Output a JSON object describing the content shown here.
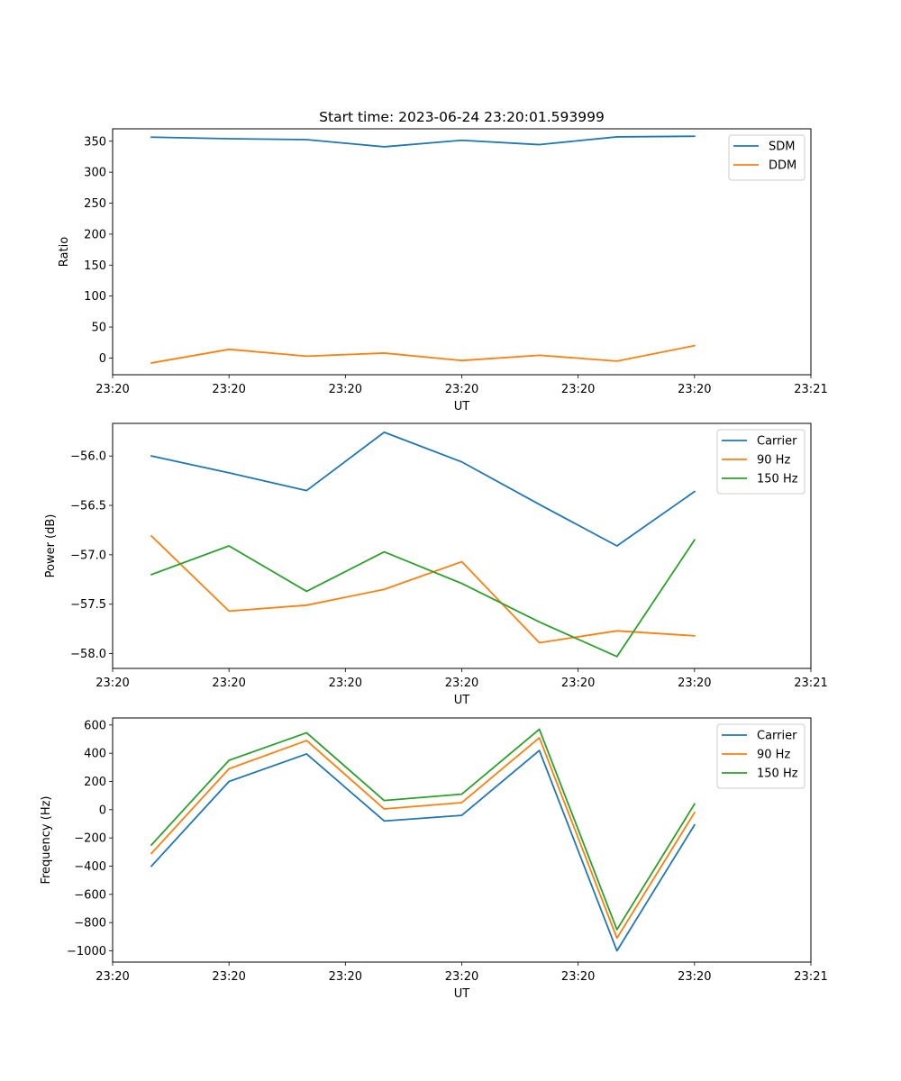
{
  "chart_data": [
    {
      "type": "line",
      "title": "Start time: 2023-06-24 23:20:01.593999",
      "xlabel": "UT",
      "ylabel": "Ratio",
      "x": [
        1,
        2,
        3,
        4,
        5,
        6,
        7,
        8
      ],
      "xlim": [
        0.5,
        9.5
      ],
      "x_ticks": [
        0.5,
        2,
        3.5,
        5,
        6.5,
        8,
        9.5
      ],
      "x_tick_labels": [
        "23:20",
        "23:20",
        "23:20",
        "23:20",
        "23:20",
        "23:20",
        "23:21"
      ],
      "ylim": [
        -27,
        370
      ],
      "y_ticks": [
        0,
        50,
        100,
        150,
        200,
        250,
        300,
        350
      ],
      "y_tick_labels": [
        "0",
        "50",
        "100",
        "150",
        "200",
        "250",
        "300",
        "350"
      ],
      "legend": "top-right",
      "grid": false,
      "series": [
        {
          "name": "SDM",
          "color": "#1f77b4",
          "values": [
            356.5,
            354,
            352.5,
            341,
            351.5,
            344.5,
            357,
            358
          ]
        },
        {
          "name": "DDM",
          "color": "#ff7f0e",
          "values": [
            -8,
            14,
            3,
            8,
            -4,
            4.5,
            -5,
            20
          ]
        }
      ]
    },
    {
      "type": "line",
      "title": "",
      "xlabel": "UT",
      "ylabel": "Power (dB)",
      "x": [
        1,
        2,
        3,
        4,
        5,
        6,
        7,
        8
      ],
      "xlim": [
        0.5,
        9.5
      ],
      "x_ticks": [
        0.5,
        2,
        3.5,
        5,
        6.5,
        8,
        9.5
      ],
      "x_tick_labels": [
        "23:20",
        "23:20",
        "23:20",
        "23:20",
        "23:20",
        "23:20",
        "23:21"
      ],
      "ylim": [
        -58.15,
        -55.67
      ],
      "y_ticks": [
        -58.0,
        -57.5,
        -57.0,
        -56.5,
        -56.0
      ],
      "y_tick_labels": [
        "−58.0",
        "−57.5",
        "−57.0",
        "−56.5",
        "−56.0"
      ],
      "legend": "top-right",
      "grid": false,
      "series": [
        {
          "name": "Carrier",
          "color": "#1f77b4",
          "values": [
            -56.0,
            -56.17,
            -56.35,
            -55.76,
            -56.06,
            -56.49,
            -56.91,
            -56.36
          ]
        },
        {
          "name": "90 Hz",
          "color": "#ff7f0e",
          "values": [
            -56.81,
            -57.57,
            -57.51,
            -57.35,
            -57.07,
            -57.89,
            -57.77,
            -57.82
          ]
        },
        {
          "name": "150 Hz",
          "color": "#2ca02c",
          "values": [
            -57.2,
            -56.91,
            -57.37,
            -56.97,
            -57.29,
            -57.68,
            -58.03,
            -56.85
          ]
        }
      ]
    },
    {
      "type": "line",
      "title": "",
      "xlabel": "UT",
      "ylabel": "Frequency (Hz)",
      "x": [
        1,
        2,
        3,
        4,
        5,
        6,
        7,
        8
      ],
      "xlim": [
        0.5,
        9.5
      ],
      "x_ticks": [
        0.5,
        2,
        3.5,
        5,
        6.5,
        8,
        9.5
      ],
      "x_tick_labels": [
        "23:20",
        "23:20",
        "23:20",
        "23:20",
        "23:20",
        "23:20",
        "23:21"
      ],
      "ylim": [
        -1080,
        650
      ],
      "y_ticks": [
        -1000,
        -800,
        -600,
        -400,
        -200,
        0,
        200,
        400,
        600
      ],
      "y_tick_labels": [
        "−1000",
        "−800",
        "−600",
        "−400",
        "−200",
        "0",
        "200",
        "400",
        "600"
      ],
      "legend": "top-right",
      "grid": false,
      "series": [
        {
          "name": "Carrier",
          "color": "#1f77b4",
          "values": [
            -400,
            200,
            395,
            -80,
            -40,
            420,
            -1000,
            -108
          ]
        },
        {
          "name": "90 Hz",
          "color": "#ff7f0e",
          "values": [
            -310,
            290,
            490,
            5,
            50,
            510,
            -910,
            -20
          ]
        },
        {
          "name": "150 Hz",
          "color": "#2ca02c",
          "values": [
            -250,
            350,
            545,
            65,
            110,
            570,
            -850,
            40
          ]
        }
      ]
    }
  ]
}
